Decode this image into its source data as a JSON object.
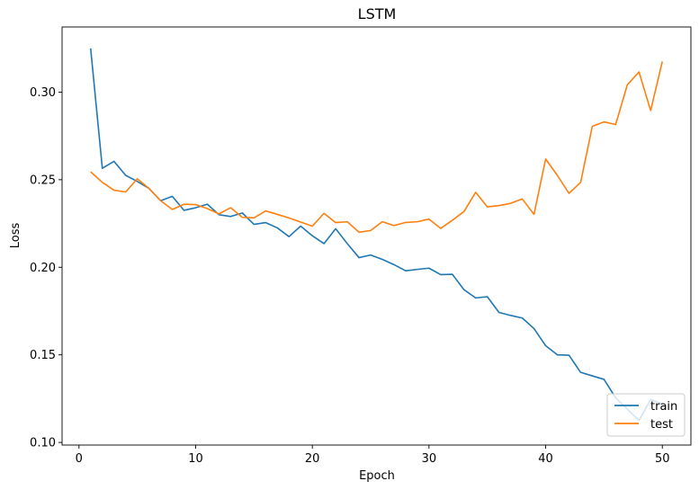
{
  "chart_data": {
    "type": "line",
    "title": "LSTM",
    "xlabel": "Epoch",
    "ylabel": "Loss",
    "xlim": [
      -1.45,
      52.45
    ],
    "ylim": [
      0.0985,
      0.3372
    ],
    "xticks": [
      0,
      10,
      20,
      30,
      40,
      50
    ],
    "yticks": [
      0.1,
      0.15,
      0.2,
      0.25,
      0.3
    ],
    "ytick_labels": [
      "0.10",
      "0.15",
      "0.20",
      "0.25",
      "0.30"
    ],
    "grid": false,
    "legend_position": "lower-right",
    "x": [
      1,
      2,
      3,
      4,
      5,
      6,
      7,
      8,
      9,
      10,
      11,
      12,
      13,
      14,
      15,
      16,
      17,
      18,
      19,
      20,
      21,
      22,
      23,
      24,
      25,
      26,
      27,
      28,
      29,
      30,
      31,
      32,
      33,
      34,
      35,
      36,
      37,
      38,
      39,
      40,
      41,
      42,
      43,
      44,
      45,
      46,
      47,
      48,
      49,
      50
    ],
    "series": [
      {
        "name": "train",
        "color": "#1f77b4",
        "values": [
          0.325,
          0.2565,
          0.2605,
          0.2525,
          0.249,
          0.245,
          0.238,
          0.2405,
          0.2325,
          0.234,
          0.236,
          0.23,
          0.229,
          0.231,
          0.2245,
          0.2255,
          0.2225,
          0.2175,
          0.2235,
          0.218,
          0.2135,
          0.222,
          0.2135,
          0.2055,
          0.207,
          0.2045,
          0.2015,
          0.198,
          0.1988,
          0.1995,
          0.1958,
          0.196,
          0.1872,
          0.1825,
          0.1832,
          0.1742,
          0.1725,
          0.171,
          0.165,
          0.1552,
          0.15,
          0.1498,
          0.14,
          0.138,
          0.136,
          0.1255,
          0.119,
          0.1125,
          0.1245,
          0.122
        ]
      },
      {
        "name": "test",
        "color": "#ff7f0e",
        "values": [
          0.2545,
          0.2485,
          0.244,
          0.243,
          0.2505,
          0.245,
          0.238,
          0.233,
          0.236,
          0.2358,
          0.2335,
          0.2305,
          0.234,
          0.2285,
          0.2282,
          0.2322,
          0.2302,
          0.2282,
          0.2258,
          0.2235,
          0.2308,
          0.2255,
          0.226,
          0.22,
          0.221,
          0.226,
          0.2238,
          0.2256,
          0.226,
          0.2275,
          0.2222,
          0.2268,
          0.2318,
          0.2428,
          0.2345,
          0.2352,
          0.2365,
          0.239,
          0.2302,
          0.2618,
          0.2525,
          0.2422,
          0.2485,
          0.2805,
          0.283,
          0.2815,
          0.3042,
          0.3115,
          0.2895,
          0.3175
        ]
      }
    ]
  }
}
